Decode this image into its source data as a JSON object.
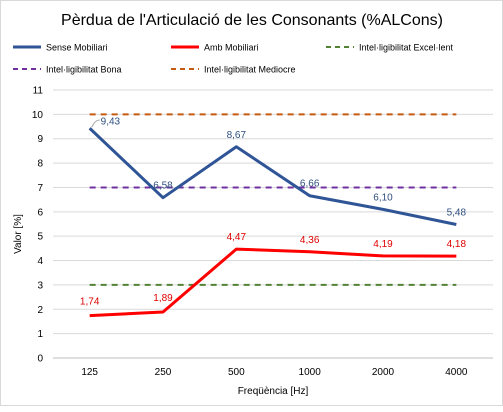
{
  "chart_data": {
    "type": "line",
    "title": "Pèrdua de l'Articulació de les Consonants (%ALCons)",
    "xlabel": "Freqüència [Hz]",
    "ylabel": "Valor [%]",
    "categories": [
      "125",
      "250",
      "500",
      "1000",
      "2000",
      "4000"
    ],
    "ylim": [
      0,
      11
    ],
    "yticks": [
      "0",
      "1",
      "2",
      "3",
      "4",
      "5",
      "6",
      "7",
      "8",
      "9",
      "10",
      "11"
    ],
    "grid": true,
    "legend_position": "top",
    "series": [
      {
        "name": "Sense Mobiliari",
        "values": [
          9.43,
          6.58,
          8.67,
          6.66,
          6.1,
          5.48
        ],
        "labels": [
          "9,43",
          "6,58",
          "8,67",
          "6,66",
          "6,10",
          "5,48"
        ],
        "color": "#2f5597",
        "style": "solid"
      },
      {
        "name": "Amb Mobiliari",
        "values": [
          1.74,
          1.89,
          4.47,
          4.36,
          4.19,
          4.18
        ],
        "labels": [
          "1,74",
          "1,89",
          "4,47",
          "4,36",
          "4,19",
          "4,18"
        ],
        "color": "#ff0000",
        "style": "solid"
      },
      {
        "name": "Intel·ligibilitat Excel·lent",
        "values": [
          3,
          3,
          3,
          3,
          3,
          3
        ],
        "color": "#548235",
        "style": "dashed"
      },
      {
        "name": "Intel·ligibilitat Bona",
        "values": [
          7,
          7,
          7,
          7,
          7,
          7
        ],
        "color": "#7030a0",
        "style": "dashed"
      },
      {
        "name": "Intel·ligibilitat Mediocre",
        "values": [
          10,
          10,
          10,
          10,
          10,
          10
        ],
        "color": "#c55a11",
        "style": "dashed"
      }
    ]
  }
}
